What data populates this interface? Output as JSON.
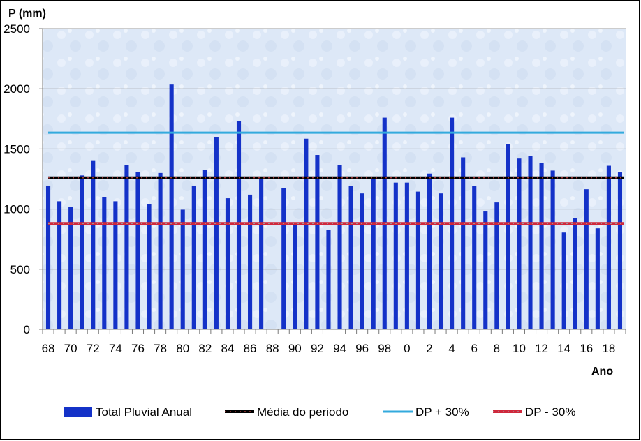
{
  "chart_data": {
    "type": "bar",
    "ylabel": "P (mm)",
    "xlabel": "Ano",
    "ylim": [
      0,
      2500
    ],
    "yticks": [
      0,
      500,
      1000,
      1500,
      2000,
      2500
    ],
    "grid": "horizontal",
    "legend_position": "bottom",
    "categories": [
      "68",
      "69",
      "70",
      "71",
      "72",
      "73",
      "74",
      "75",
      "76",
      "77",
      "78",
      "79",
      "80",
      "81",
      "82",
      "83",
      "84",
      "85",
      "86",
      "87",
      "88",
      "89",
      "90",
      "91",
      "92",
      "93",
      "94",
      "95",
      "96",
      "97",
      "98",
      "99",
      "0",
      "1",
      "2",
      "3",
      "4",
      "5",
      "6",
      "7",
      "8",
      "9",
      "10",
      "11",
      "12",
      "13",
      "14",
      "15",
      "16",
      "17",
      "18",
      "19"
    ],
    "x_tick_labels": [
      "68",
      "70",
      "72",
      "74",
      "76",
      "78",
      "80",
      "82",
      "84",
      "86",
      "88",
      "90",
      "92",
      "94",
      "96",
      "98",
      "0",
      "2",
      "4",
      "6",
      "8",
      "10",
      "12",
      "14",
      "16",
      "18"
    ],
    "series": [
      {
        "name": "Total Pluvial Anual",
        "type": "bar",
        "color": "#1432c8",
        "values": [
          1195,
          1065,
          1020,
          1280,
          1400,
          1100,
          1065,
          1365,
          1310,
          1040,
          1300,
          2035,
          995,
          1195,
          1325,
          1600,
          1090,
          1730,
          1120,
          1255,
          0,
          1175,
          865,
          1585,
          1450,
          825,
          1365,
          1190,
          1130,
          1250,
          1760,
          1220,
          1220,
          1145,
          1295,
          1130,
          1760,
          1430,
          1190,
          980,
          1055,
          1540,
          1420,
          1440,
          1385,
          1320,
          805,
          925,
          1165,
          840,
          1360,
          1305
        ]
      },
      {
        "name": "Média do periodo",
        "type": "line",
        "color": "#000000",
        "value": 1260
      },
      {
        "name": "DP + 30%",
        "type": "line",
        "color": "#33aadd",
        "value": 1635
      },
      {
        "name": "DP - 30%",
        "type": "line",
        "color": "#d0283c",
        "value": 880
      }
    ]
  }
}
